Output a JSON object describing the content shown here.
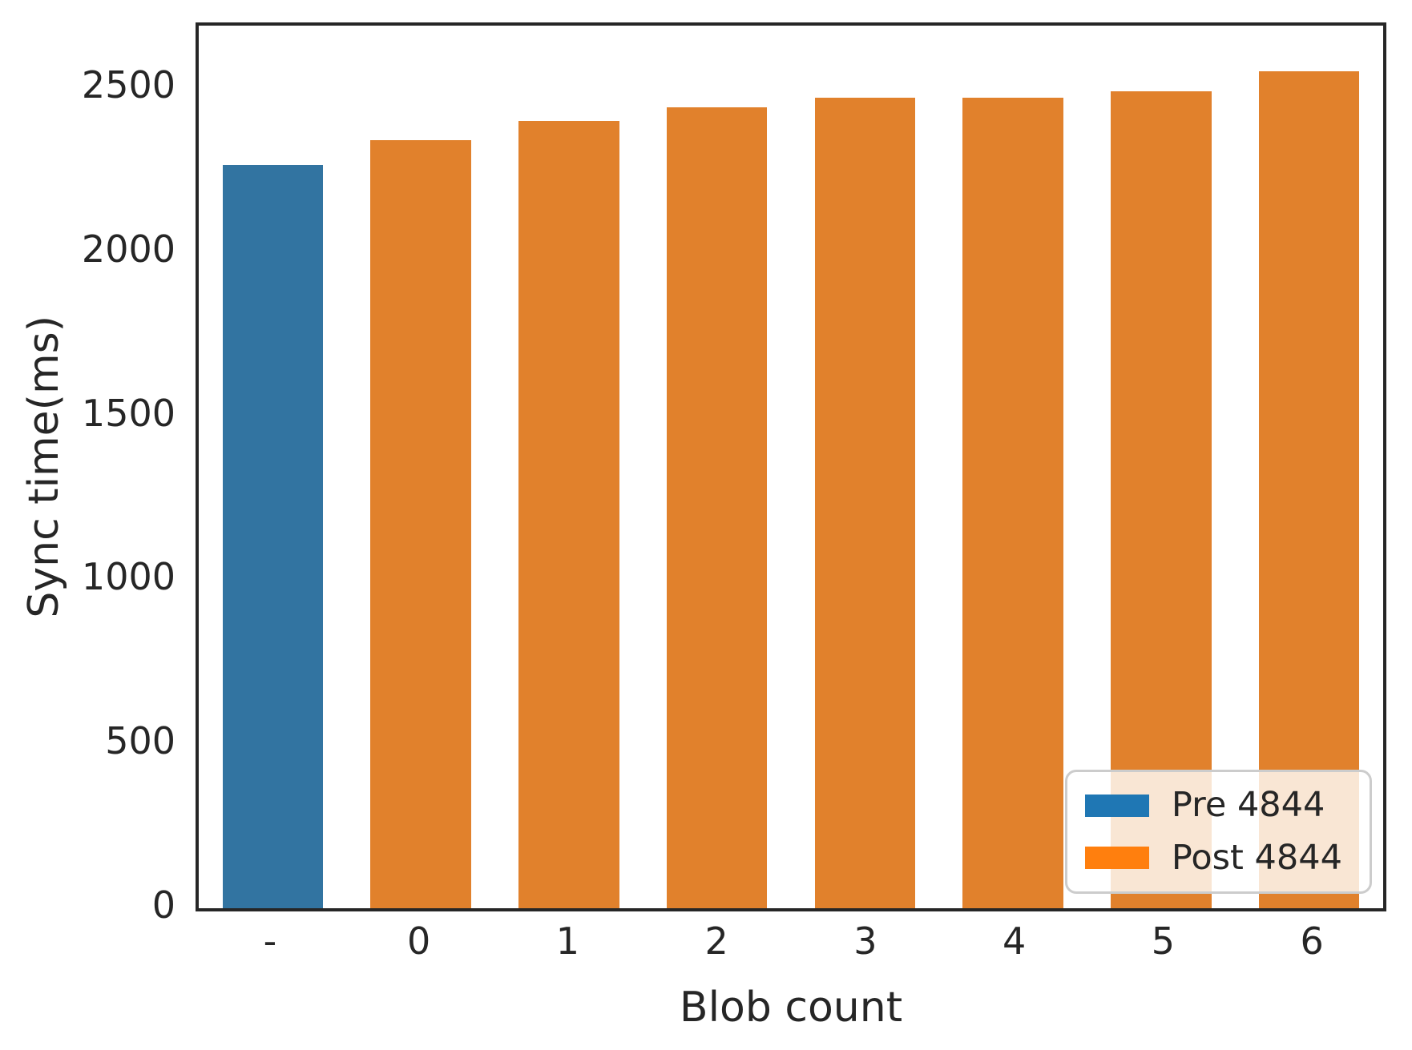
{
  "figure": {
    "background": "#ffffff",
    "text_color": "#262626",
    "spine_color": "#262626"
  },
  "chart_data": {
    "type": "bar",
    "categories": [
      "-",
      "0",
      "1",
      "2",
      "3",
      "4",
      "5",
      "6"
    ],
    "series": [
      {
        "name": "Pre 4844",
        "bar_color": "#3274a1",
        "legend_color": "#1f77b4",
        "values": [
          2265,
          null,
          null,
          null,
          null,
          null,
          null,
          null
        ]
      },
      {
        "name": "Post 4844",
        "bar_color": "#e1812c",
        "legend_color": "#ff7f0e",
        "values": [
          null,
          2340,
          2400,
          2440,
          2470,
          2470,
          2490,
          2550
        ]
      }
    ],
    "xlabel": "Blob count",
    "ylabel": "Sync time(ms)",
    "ylim": [
      0,
      2690
    ],
    "yticks": [
      0,
      500,
      1000,
      1500,
      2000,
      2500
    ],
    "grid": false,
    "legend_position": "lower right"
  }
}
